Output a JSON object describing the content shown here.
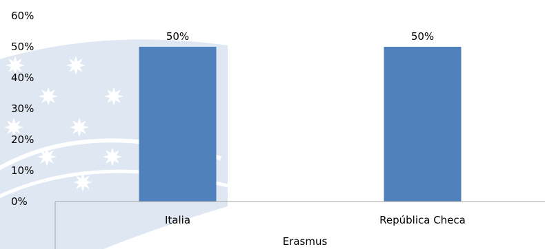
{
  "chart_data": {
    "type": "bar",
    "categories": [
      "Italia",
      "República Checa"
    ],
    "values": [
      50,
      50
    ],
    "data_labels": [
      "50%",
      "50%"
    ],
    "xlabel": "Erasmus",
    "ylabel": "",
    "ylim": [
      0,
      60
    ],
    "y_ticks": [
      0,
      10,
      20,
      30,
      40,
      50,
      60
    ],
    "y_tick_labels": [
      "0%",
      "10%",
      "20%",
      "30%",
      "40%",
      "50%",
      "60%"
    ],
    "grid": false,
    "legend": "none"
  },
  "colors": {
    "bar": "#4f81bd",
    "watermark": "#c5d5e8"
  },
  "background_image": "eu-flag-stars-watermark"
}
